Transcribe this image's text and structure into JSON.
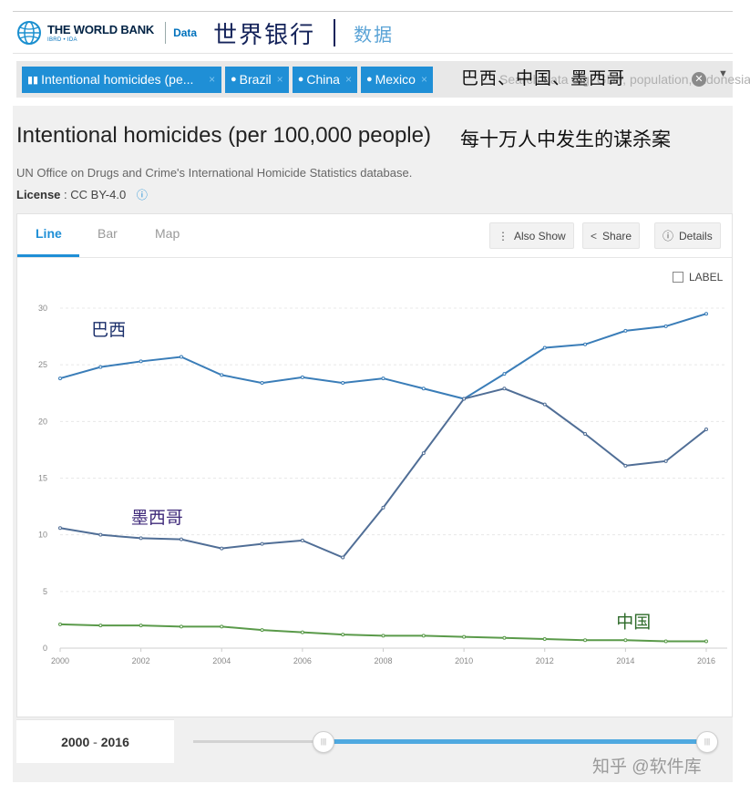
{
  "header": {
    "logo_title": "THE WORLD BANK",
    "logo_sub": "IBRD • IDA",
    "data_link": "Data",
    "cn_title": "世界银行",
    "cn_sub": "数据"
  },
  "filters": {
    "chips": [
      {
        "label": "Intentional homicides (pe...",
        "icon": "bar-chart-icon"
      },
      {
        "label": "Brazil",
        "icon": "map-pin-icon"
      },
      {
        "label": "China",
        "icon": "map-pin-icon"
      },
      {
        "label": "Mexico",
        "icon": "map-pin-icon"
      }
    ],
    "chip_remove": "×",
    "placeholder": "Search data e.g. GDP, population, Indonesia",
    "overlay_cn": "巴西、中国、墨西哥"
  },
  "indicator": {
    "title": "Intentional homicides (per 100,000 people)",
    "title_cn": "每十万人中发生的谋杀案",
    "source": "UN Office on Drugs and Crime's International Homicide Statistics database.",
    "license_label": "License",
    "license_value": ": CC BY-4.0"
  },
  "tabs": [
    "Line",
    "Bar",
    "Map"
  ],
  "buttons": {
    "also_show": "Also Show",
    "share": "Share",
    "details": "Details"
  },
  "label_toggle": "LABEL",
  "chart_data": {
    "type": "line",
    "x": [
      2000,
      2001,
      2002,
      2003,
      2004,
      2005,
      2006,
      2007,
      2008,
      2009,
      2010,
      2011,
      2012,
      2013,
      2014,
      2015,
      2016
    ],
    "xticks": [
      2000,
      2002,
      2004,
      2006,
      2008,
      2010,
      2012,
      2014,
      2016
    ],
    "yticks": [
      0,
      5,
      10,
      15,
      20,
      25,
      30
    ],
    "ylim": [
      0,
      30
    ],
    "xlim": [
      2000,
      2016
    ],
    "grid": "horizontal",
    "series": [
      {
        "name": "巴西",
        "color": "#3a7db8",
        "values": [
          23.8,
          24.8,
          25.3,
          25.7,
          24.1,
          23.4,
          23.9,
          23.4,
          23.8,
          22.9,
          22.0,
          24.2,
          26.5,
          26.8,
          28.0,
          28.4,
          29.5
        ]
      },
      {
        "name": "墨西哥",
        "color": "#506e96",
        "values": [
          10.6,
          10.0,
          9.7,
          9.6,
          8.8,
          9.2,
          9.5,
          8.0,
          12.4,
          17.2,
          22.0,
          22.9,
          21.5,
          18.9,
          16.1,
          16.5,
          19.3
        ]
      },
      {
        "name": "中国",
        "color": "#5a9a4a",
        "values": [
          2.1,
          2.0,
          2.0,
          1.9,
          1.9,
          1.6,
          1.4,
          1.2,
          1.1,
          1.1,
          1.0,
          0.9,
          0.8,
          0.7,
          0.7,
          0.6,
          0.6
        ]
      }
    ]
  },
  "range": {
    "start": "2000",
    "end": "2016",
    "sep": " - "
  },
  "watermark": "知乎 @软件库"
}
